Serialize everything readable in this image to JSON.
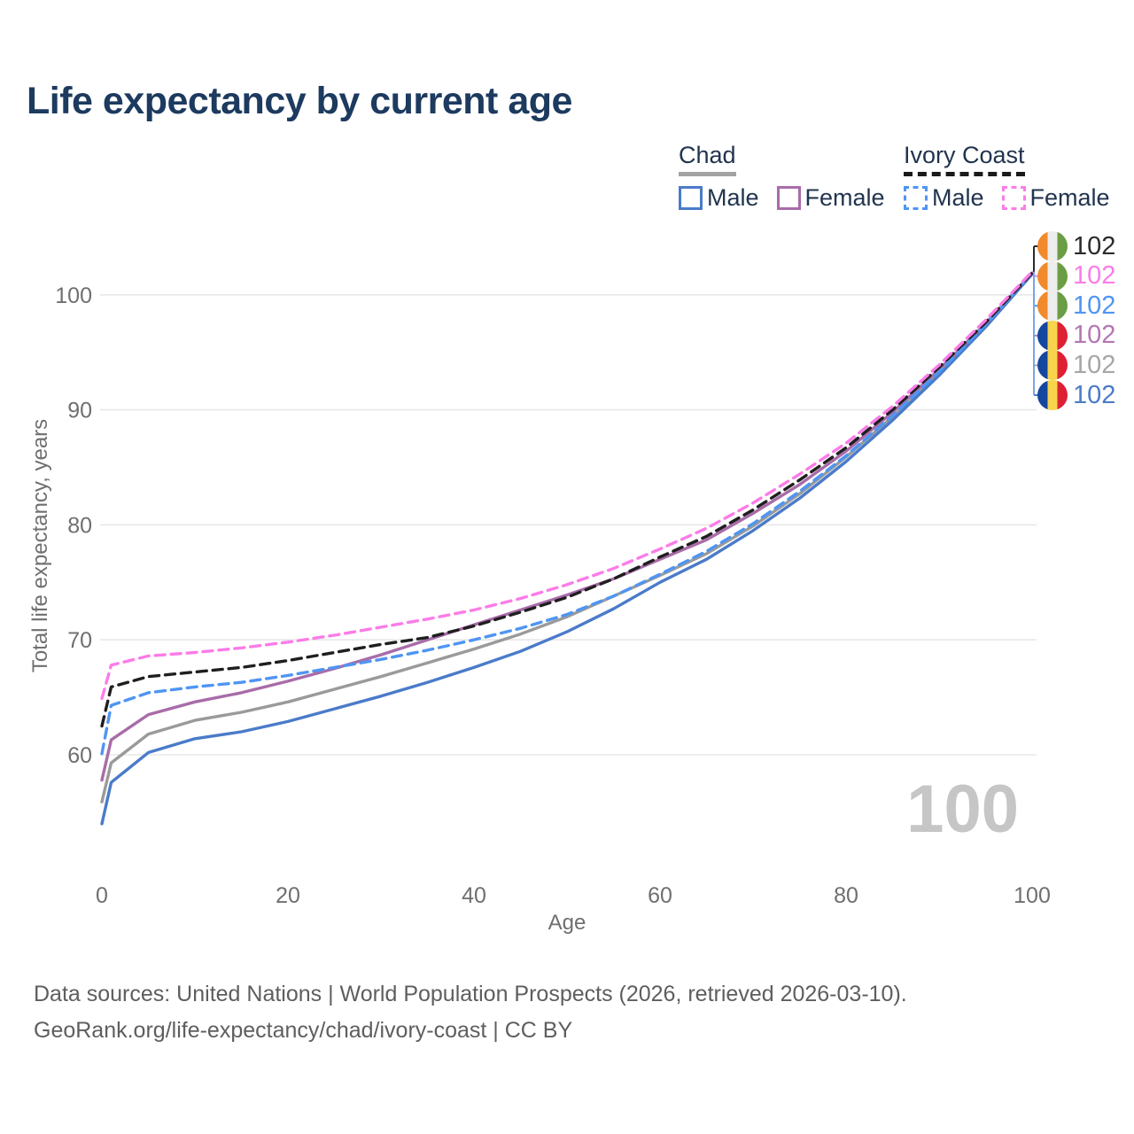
{
  "title": "Life expectancy by current age",
  "legend": {
    "chad": {
      "label": "Chad",
      "male": "Male",
      "female": "Female"
    },
    "ivory_coast": {
      "label": "Ivory Coast",
      "male": "Male",
      "female": "Female"
    }
  },
  "watermark": "100",
  "source": {
    "line1": "Data sources: United Nations | World Population Prospects (2026, retrieved 2026-03-10).",
    "line2": "GeoRank.org/life-expectancy/chad/ivory-coast | CC BY"
  },
  "colors": {
    "chad_male": "#4a7bc9",
    "chad_female": "#a86ca8",
    "chad_both": "#9a9a9a",
    "ivory_coast_male": "#4f95f2",
    "ivory_coast_female": "#fb7ce8",
    "ivory_coast_both": "#1f1f1f",
    "grid": "#e8e8e8",
    "tick_text": "#6f6f6f",
    "title_text": "#1d3a5f",
    "legend_text": "#22344f",
    "chad_underline": "#a3a3a3",
    "ivory_coast_underline": "#1a1a1a",
    "watermark": "#c6c6c6",
    "bracket_upper": "#2b2b2b",
    "bracket_lower": "#7ba3e8"
  },
  "flags": {
    "chad": [
      "#16479e",
      "#f7d44c",
      "#dd2033"
    ],
    "ivory_coast": [
      "#f08a2d",
      "#ededed",
      "#6b9e44"
    ]
  },
  "chart_data": {
    "type": "line",
    "title": "Life expectancy by current age",
    "xlabel": "Age",
    "ylabel": "Total life expectancy, years",
    "xlim": [
      0,
      100
    ],
    "ylim": [
      54,
      104
    ],
    "xticks": [
      0,
      20,
      40,
      60,
      80,
      100
    ],
    "yticks": [
      60,
      70,
      80,
      90,
      100
    ],
    "grid": "horizontal",
    "legend_position": "top-right",
    "x": [
      0,
      1,
      5,
      10,
      15,
      20,
      25,
      30,
      35,
      40,
      45,
      50,
      55,
      60,
      65,
      70,
      75,
      80,
      85,
      90,
      95,
      100
    ],
    "series": [
      {
        "key": "chad_both",
        "name": "Chad (both sexes)",
        "color": "#9a9a9a",
        "dash": "solid",
        "values": [
          55.9,
          59.3,
          61.8,
          63.0,
          63.7,
          64.6,
          65.7,
          66.8,
          68.0,
          69.2,
          70.5,
          72.0,
          73.8,
          75.6,
          77.5,
          79.9,
          82.7,
          85.9,
          89.4,
          93.2,
          97.3,
          101.8
        ]
      },
      {
        "key": "chad_male",
        "name": "Chad Male",
        "color": "#4a7bc9",
        "dash": "solid",
        "values": [
          54.0,
          57.6,
          60.2,
          61.4,
          62.0,
          62.9,
          64.0,
          65.1,
          66.3,
          67.6,
          69.0,
          70.7,
          72.7,
          75.0,
          77.0,
          79.5,
          82.3,
          85.5,
          89.1,
          93.0,
          97.2,
          101.8
        ]
      },
      {
        "key": "chad_female",
        "name": "Chad Female",
        "color": "#a86ca8",
        "dash": "solid",
        "values": [
          57.8,
          61.3,
          63.5,
          64.6,
          65.4,
          66.4,
          67.5,
          68.7,
          70.0,
          71.3,
          72.6,
          73.9,
          75.3,
          77.0,
          78.7,
          81.0,
          83.5,
          86.4,
          89.8,
          93.5,
          97.5,
          101.9
        ]
      },
      {
        "key": "ivory_coast_male",
        "name": "Ivory Coast Male",
        "color": "#4f95f2",
        "dash": "dashed",
        "values": [
          60.1,
          64.3,
          65.4,
          65.9,
          66.3,
          66.9,
          67.6,
          68.3,
          69.1,
          70.0,
          71.0,
          72.2,
          73.8,
          75.7,
          77.7,
          80.1,
          82.9,
          86.0,
          89.5,
          93.3,
          97.4,
          101.9
        ]
      },
      {
        "key": "ivory_coast_both",
        "name": "Ivory Coast (both sexes)",
        "color": "#1f1f1f",
        "dash": "dashed",
        "values": [
          62.5,
          65.9,
          66.8,
          67.2,
          67.6,
          68.2,
          68.9,
          69.6,
          70.2,
          71.2,
          72.4,
          73.7,
          75.3,
          77.2,
          79.0,
          81.3,
          83.9,
          86.7,
          90.0,
          93.7,
          97.6,
          101.9
        ]
      },
      {
        "key": "ivory_coast_female",
        "name": "Ivory Coast Female",
        "color": "#fb7ce8",
        "dash": "dashed",
        "values": [
          64.9,
          67.8,
          68.6,
          68.9,
          69.3,
          69.8,
          70.4,
          71.1,
          71.8,
          72.6,
          73.6,
          74.8,
          76.2,
          77.9,
          79.7,
          81.9,
          84.4,
          87.1,
          90.3,
          93.9,
          97.8,
          102.0
        ]
      }
    ]
  },
  "end_labels": [
    {
      "flag": "ivory_coast",
      "value": "102",
      "color": "#2b2b2b",
      "series": "ivory_coast_both"
    },
    {
      "flag": "ivory_coast",
      "value": "102",
      "color": "#fb7ce8",
      "series": "ivory_coast_female"
    },
    {
      "flag": "ivory_coast",
      "value": "102",
      "color": "#4f95f2",
      "series": "ivory_coast_male"
    },
    {
      "flag": "chad",
      "value": "102",
      "color": "#b476b4",
      "series": "chad_female"
    },
    {
      "flag": "chad",
      "value": "102",
      "color": "#a6a6a6",
      "series": "chad_both"
    },
    {
      "flag": "chad",
      "value": "102",
      "color": "#4a7bc9",
      "series": "chad_male"
    }
  ]
}
